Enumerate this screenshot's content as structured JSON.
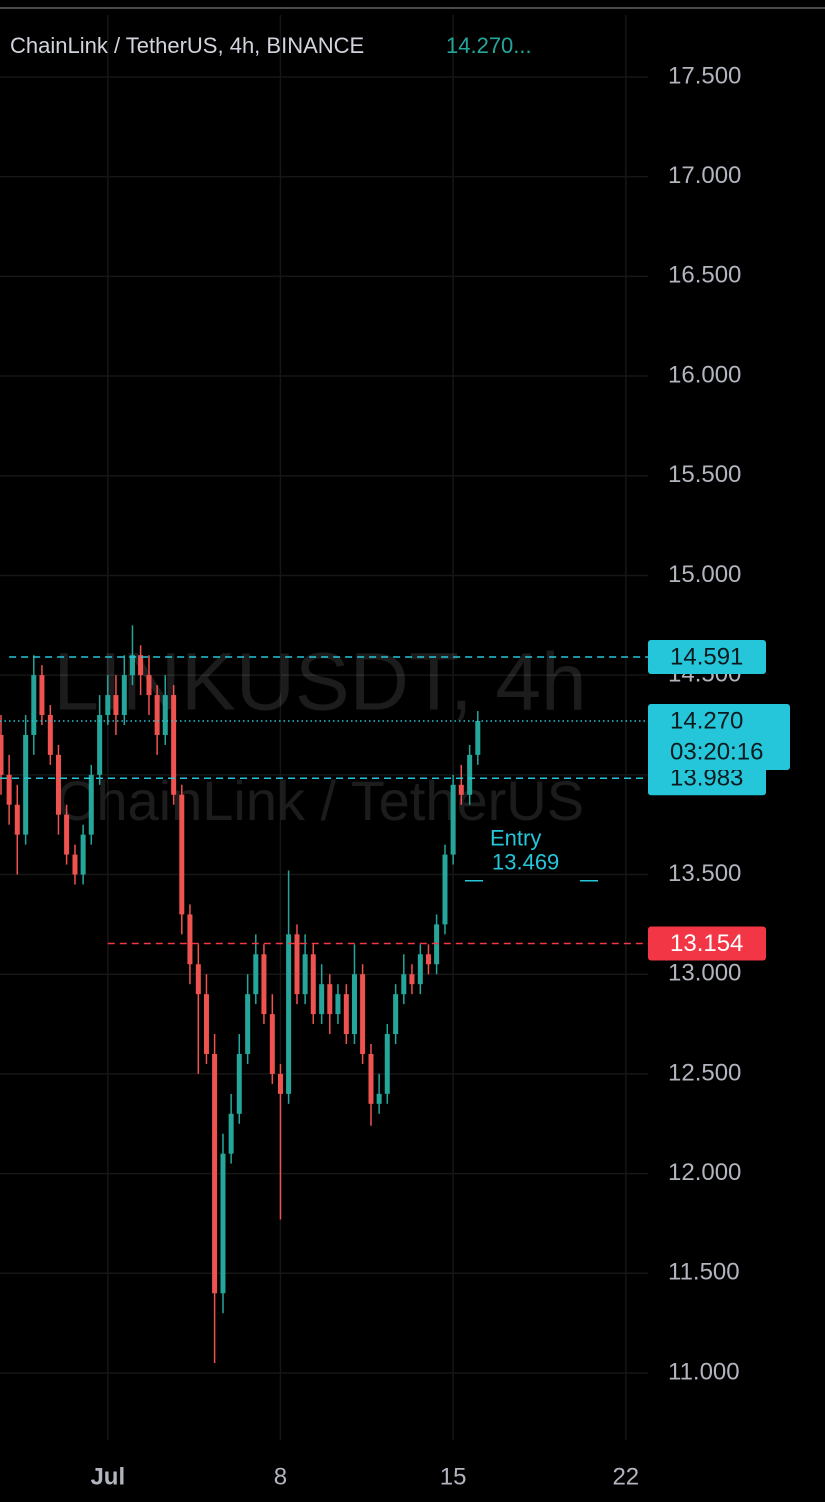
{
  "chart_data": {
    "type": "candlestick",
    "title": "ChainLink / TetherUS, 4h, BINANCE",
    "last_price_label": "14.270...",
    "watermark": "LINKUSDT, 4h",
    "watermark_subtitle": "ChainLink / TetherUS",
    "countdown": "03:20:16",
    "up_color": "#26a69a",
    "down_color": "#ef5350",
    "grid": true,
    "xlim": [
      -3.37,
      22.9
    ],
    "xticks": [
      {
        "value": 1,
        "label": "Jul"
      },
      8,
      15,
      22
    ],
    "ylim": [
      10.664,
      17.886
    ],
    "yticks": [
      {
        "value": 11,
        "label": "11.000"
      },
      {
        "value": 11.5,
        "label": "11.500"
      },
      {
        "value": 12,
        "label": "12.000"
      },
      {
        "value": 12.5,
        "label": "12.500"
      },
      {
        "value": 13,
        "label": "13.000"
      },
      {
        "value": 13.5,
        "label": "13.500"
      },
      {
        "value": 14,
        "label": "14.000"
      },
      {
        "value": 14.5,
        "label": "14.500"
      },
      {
        "value": 15,
        "label": "15.000"
      },
      {
        "value": 15.5,
        "label": "15.500"
      },
      {
        "value": 16,
        "label": "16.000"
      },
      {
        "value": 16.5,
        "label": "16.500"
      },
      {
        "value": 17,
        "label": "17.000"
      },
      {
        "value": 17.5,
        "label": "17.500"
      }
    ],
    "x": [
      -3.33,
      -3.0,
      -2.67,
      -2.33,
      -2.0,
      -1.67,
      -1.33,
      -1.0,
      -0.67,
      -0.33,
      0.0,
      0.33,
      0.67,
      1.0,
      1.33,
      1.67,
      2.0,
      2.33,
      2.67,
      3.0,
      3.33,
      3.67,
      4.0,
      4.33,
      4.67,
      5.0,
      5.33,
      5.67,
      6.0,
      6.33,
      6.67,
      7.0,
      7.33,
      7.67,
      8.0,
      8.33,
      8.67,
      9.0,
      9.33,
      9.67,
      10.0,
      10.33,
      10.67,
      11.0,
      11.33,
      11.67,
      12.0,
      12.33,
      12.67,
      13.0,
      13.33,
      13.67,
      14.0,
      14.33,
      14.67,
      15.0,
      15.33,
      15.67,
      16.0
    ],
    "open": [
      14.2,
      14.0,
      13.85,
      13.7,
      14.2,
      14.5,
      14.3,
      14.1,
      13.8,
      13.6,
      13.5,
      13.7,
      14.0,
      14.3,
      14.4,
      14.3,
      14.5,
      14.6,
      14.5,
      14.4,
      14.2,
      14.4,
      13.9,
      13.3,
      13.05,
      12.9,
      12.6,
      11.4,
      12.1,
      12.3,
      12.6,
      12.9,
      13.1,
      12.8,
      12.5,
      12.4,
      13.2,
      12.9,
      13.1,
      12.8,
      12.95,
      12.8,
      12.9,
      12.7,
      13.0,
      12.6,
      12.35,
      12.4,
      12.7,
      12.9,
      13.0,
      12.95,
      13.1,
      13.05,
      13.25,
      13.6,
      13.95,
      13.9,
      14.1
    ],
    "high": [
      14.3,
      14.1,
      13.95,
      14.3,
      14.6,
      14.55,
      14.35,
      14.15,
      13.85,
      13.65,
      13.75,
      14.05,
      14.4,
      14.5,
      14.5,
      14.6,
      14.75,
      14.65,
      14.6,
      14.45,
      14.5,
      14.45,
      13.95,
      13.35,
      13.15,
      13.0,
      12.7,
      12.2,
      12.4,
      12.7,
      13.0,
      13.2,
      13.15,
      12.9,
      12.55,
      13.52,
      13.25,
      13.2,
      13.15,
      13.05,
      13.0,
      12.95,
      12.95,
      13.15,
      13.05,
      12.65,
      12.5,
      12.75,
      12.95,
      13.1,
      13.05,
      13.15,
      13.15,
      13.3,
      13.65,
      14.0,
      14.05,
      14.15,
      14.32
    ],
    "low": [
      13.9,
      13.75,
      13.5,
      13.65,
      14.1,
      14.25,
      14.05,
      13.7,
      13.55,
      13.45,
      13.45,
      13.65,
      13.95,
      14.25,
      14.2,
      14.25,
      14.45,
      14.4,
      14.3,
      14.1,
      14.15,
      13.85,
      13.2,
      12.95,
      12.5,
      12.55,
      11.05,
      11.3,
      12.05,
      12.25,
      12.55,
      12.85,
      12.75,
      12.45,
      11.77,
      12.35,
      12.85,
      12.85,
      12.75,
      12.75,
      12.7,
      12.75,
      12.65,
      12.65,
      12.55,
      12.24,
      12.3,
      12.35,
      12.65,
      12.85,
      12.9,
      12.9,
      13.0,
      13.0,
      13.2,
      13.55,
      13.85,
      13.85,
      14.05
    ],
    "close": [
      14.0,
      13.85,
      13.7,
      14.2,
      14.5,
      14.3,
      14.1,
      13.8,
      13.6,
      13.5,
      13.7,
      14.0,
      14.3,
      14.4,
      14.3,
      14.5,
      14.6,
      14.5,
      14.4,
      14.2,
      14.4,
      13.9,
      13.3,
      13.05,
      12.9,
      12.6,
      11.4,
      12.1,
      12.3,
      12.6,
      12.9,
      13.1,
      12.8,
      12.5,
      12.4,
      13.2,
      12.9,
      13.1,
      12.8,
      12.95,
      12.8,
      12.9,
      12.7,
      13.0,
      12.6,
      12.35,
      12.4,
      12.7,
      12.9,
      13.0,
      12.95,
      13.1,
      13.05,
      13.25,
      13.6,
      13.95,
      13.9,
      14.1,
      14.27
    ],
    "price_lines": [
      {
        "value": 14.591,
        "color": "#26c6da",
        "style": "dashed",
        "from": -3.0
      },
      {
        "value": 13.983,
        "color": "#26c6da",
        "style": "dashed",
        "from": -3.37
      },
      {
        "value": 14.27,
        "label": "14.270",
        "color": "#26c6da",
        "style": "dotted",
        "from": -3.37
      },
      {
        "value": 13.154,
        "color": "#f23645",
        "style": "dashed",
        "from": 1.0
      }
    ],
    "entry": {
      "label": "Entry",
      "value": 13.469
    }
  }
}
